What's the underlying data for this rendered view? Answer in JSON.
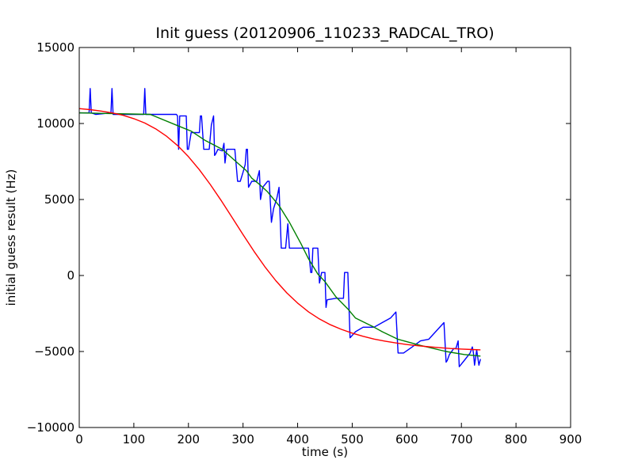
{
  "chart_data": {
    "type": "line",
    "title": "Init guess (20120906_110233_RADCAL_TRO)",
    "xlabel": "time (s)",
    "ylabel": "initial guess result (Hz)",
    "xlim": [
      0,
      900
    ],
    "ylim": [
      -10000,
      15000
    ],
    "xticks": [
      0,
      100,
      200,
      300,
      400,
      500,
      600,
      700,
      800,
      900
    ],
    "yticks": [
      -10000,
      -5000,
      0,
      5000,
      10000,
      15000
    ],
    "grid": false,
    "legend": "none",
    "series": [
      {
        "color": "#0000ff",
        "points": [
          [
            0,
            10700
          ],
          [
            18,
            10700
          ],
          [
            20,
            12300
          ],
          [
            22,
            10700
          ],
          [
            30,
            10600
          ],
          [
            58,
            10700
          ],
          [
            60,
            12300
          ],
          [
            62,
            10600
          ],
          [
            118,
            10600
          ],
          [
            120,
            12300
          ],
          [
            122,
            10600
          ],
          [
            178,
            10600
          ],
          [
            180,
            10500
          ],
          [
            182,
            8300
          ],
          [
            184,
            10500
          ],
          [
            196,
            10500
          ],
          [
            198,
            8300
          ],
          [
            200,
            8300
          ],
          [
            205,
            9400
          ],
          [
            220,
            9400
          ],
          [
            222,
            10500
          ],
          [
            224,
            10500
          ],
          [
            228,
            8300
          ],
          [
            238,
            8300
          ],
          [
            242,
            9900
          ],
          [
            246,
            10500
          ],
          [
            248,
            7900
          ],
          [
            250,
            8000
          ],
          [
            254,
            8300
          ],
          [
            262,
            8200
          ],
          [
            265,
            8700
          ],
          [
            267,
            7400
          ],
          [
            270,
            8300
          ],
          [
            280,
            8300
          ],
          [
            285,
            8300
          ],
          [
            290,
            6200
          ],
          [
            295,
            6200
          ],
          [
            300,
            6800
          ],
          [
            304,
            7300
          ],
          [
            306,
            8300
          ],
          [
            308,
            8300
          ],
          [
            310,
            5800
          ],
          [
            316,
            6200
          ],
          [
            325,
            6200
          ],
          [
            330,
            6900
          ],
          [
            332,
            5000
          ],
          [
            336,
            5800
          ],
          [
            345,
            6200
          ],
          [
            348,
            6200
          ],
          [
            352,
            3500
          ],
          [
            356,
            4400
          ],
          [
            362,
            5100
          ],
          [
            366,
            5800
          ],
          [
            370,
            1800
          ],
          [
            378,
            1800
          ],
          [
            382,
            3400
          ],
          [
            385,
            1800
          ],
          [
            420,
            1800
          ],
          [
            424,
            200
          ],
          [
            426,
            200
          ],
          [
            428,
            1800
          ],
          [
            437,
            1800
          ],
          [
            440,
            -500
          ],
          [
            444,
            200
          ],
          [
            450,
            200
          ],
          [
            452,
            -2100
          ],
          [
            454,
            -1600
          ],
          [
            470,
            -1500
          ],
          [
            484,
            -1500
          ],
          [
            486,
            200
          ],
          [
            492,
            200
          ],
          [
            496,
            -4100
          ],
          [
            506,
            -3700
          ],
          [
            520,
            -3400
          ],
          [
            540,
            -3400
          ],
          [
            555,
            -3100
          ],
          [
            570,
            -2800
          ],
          [
            580,
            -2400
          ],
          [
            584,
            -5100
          ],
          [
            594,
            -5100
          ],
          [
            610,
            -4700
          ],
          [
            625,
            -4300
          ],
          [
            640,
            -4200
          ],
          [
            668,
            -3100
          ],
          [
            672,
            -5700
          ],
          [
            674,
            -5600
          ],
          [
            678,
            -5200
          ],
          [
            686,
            -4800
          ],
          [
            690,
            -4800
          ],
          [
            694,
            -4300
          ],
          [
            696,
            -6000
          ],
          [
            705,
            -5600
          ],
          [
            716,
            -5100
          ],
          [
            720,
            -4700
          ],
          [
            722,
            -5100
          ],
          [
            724,
            -5900
          ],
          [
            728,
            -4900
          ],
          [
            732,
            -5900
          ],
          [
            735,
            -5500
          ]
        ]
      },
      {
        "color": "#008000",
        "points": [
          [
            0,
            10700
          ],
          [
            130,
            10600
          ],
          [
            184,
            9800
          ],
          [
            205,
            9500
          ],
          [
            230,
            8900
          ],
          [
            262,
            8300
          ],
          [
            290,
            7400
          ],
          [
            306,
            6900
          ],
          [
            316,
            6400
          ],
          [
            330,
            6000
          ],
          [
            345,
            5500
          ],
          [
            366,
            4600
          ],
          [
            385,
            3500
          ],
          [
            406,
            2100
          ],
          [
            420,
            1100
          ],
          [
            437,
            100
          ],
          [
            450,
            -400
          ],
          [
            470,
            -1400
          ],
          [
            492,
            -2200
          ],
          [
            506,
            -2800
          ],
          [
            540,
            -3400
          ],
          [
            555,
            -3700
          ],
          [
            584,
            -4200
          ],
          [
            625,
            -4600
          ],
          [
            672,
            -5000
          ],
          [
            705,
            -5200
          ],
          [
            735,
            -5300
          ]
        ]
      },
      {
        "color": "#ff0000",
        "points": [
          [
            0,
            10980
          ],
          [
            20,
            10910
          ],
          [
            40,
            10820
          ],
          [
            60,
            10700
          ],
          [
            80,
            10540
          ],
          [
            100,
            10320
          ],
          [
            120,
            10030
          ],
          [
            140,
            9650
          ],
          [
            160,
            9160
          ],
          [
            180,
            8550
          ],
          [
            200,
            7820
          ],
          [
            220,
            6960
          ],
          [
            240,
            5990
          ],
          [
            260,
            4930
          ],
          [
            280,
            3810
          ],
          [
            300,
            2690
          ],
          [
            320,
            1600
          ],
          [
            340,
            580
          ],
          [
            360,
            -340
          ],
          [
            380,
            -1140
          ],
          [
            400,
            -1820
          ],
          [
            420,
            -2390
          ],
          [
            440,
            -2860
          ],
          [
            460,
            -3240
          ],
          [
            480,
            -3540
          ],
          [
            500,
            -3790
          ],
          [
            520,
            -4000
          ],
          [
            540,
            -4180
          ],
          [
            560,
            -4320
          ],
          [
            580,
            -4440
          ],
          [
            600,
            -4540
          ],
          [
            620,
            -4620
          ],
          [
            640,
            -4690
          ],
          [
            660,
            -4750
          ],
          [
            680,
            -4800
          ],
          [
            700,
            -4840
          ],
          [
            720,
            -4870
          ],
          [
            735,
            -4890
          ]
        ]
      }
    ]
  }
}
